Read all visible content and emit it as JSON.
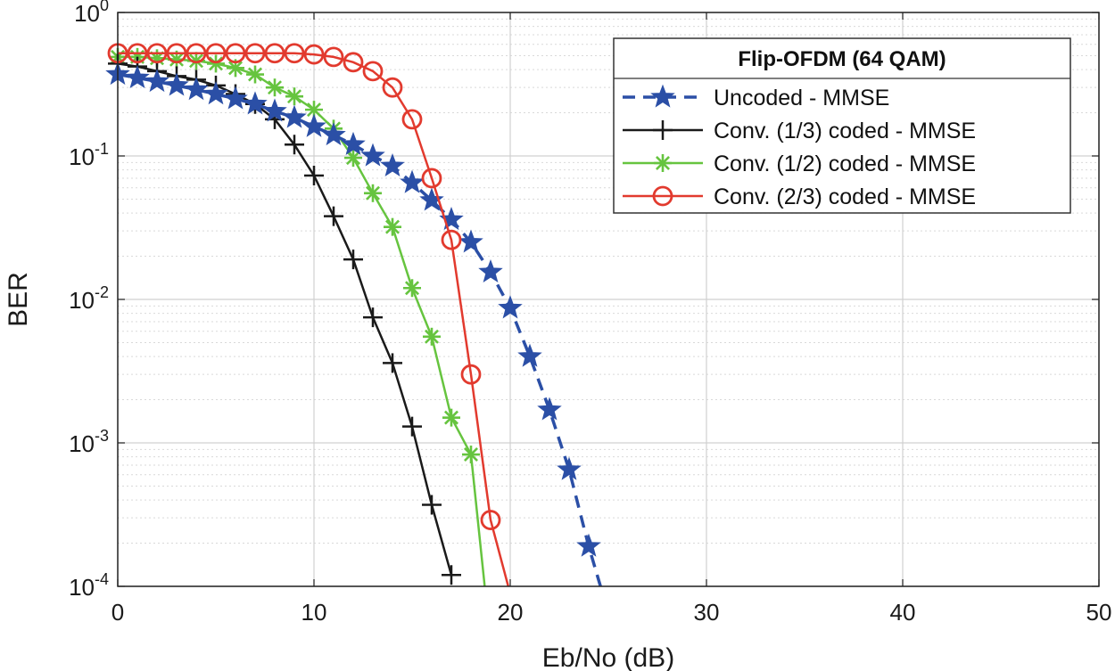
{
  "chart_data": {
    "type": "line",
    "title": "",
    "xlabel": "Eb/No (dB)",
    "ylabel": "BER",
    "x_scale": "linear",
    "y_scale": "log",
    "xlim": [
      0,
      50
    ],
    "ylim": [
      0.0001,
      1
    ],
    "x_ticks": [
      "0",
      "10",
      "20",
      "30",
      "40",
      "50"
    ],
    "y_ticks": [
      {
        "base": "10",
        "exp": "0"
      },
      {
        "base": "10",
        "exp": "-1"
      },
      {
        "base": "10",
        "exp": "-2"
      },
      {
        "base": "10",
        "exp": "-3"
      },
      {
        "base": "10",
        "exp": "-4"
      }
    ],
    "grid": true,
    "legend_title": "Flip-OFDM (64 QAM)",
    "legend_position": "top-right",
    "series": [
      {
        "name": "Uncoded - MMSE",
        "color": "#2b4fa6",
        "line_style": "dashed",
        "marker": "star",
        "x": [
          0,
          1,
          2,
          3,
          4,
          5,
          6,
          7,
          8,
          9,
          10,
          11,
          12,
          13,
          14,
          15,
          16,
          17,
          18,
          19,
          20,
          21,
          22,
          23,
          24,
          24.6
        ],
        "y": [
          0.37,
          0.35,
          0.33,
          0.31,
          0.29,
          0.27,
          0.25,
          0.23,
          0.205,
          0.185,
          0.16,
          0.14,
          0.12,
          0.1,
          0.085,
          0.065,
          0.049,
          0.036,
          0.025,
          0.0155,
          0.0087,
          0.004,
          0.0017,
          0.00065,
          0.00019,
          0.0001
        ]
      },
      {
        "name": "Conv. (1/3) coded - MMSE",
        "color": "#1a1a1a",
        "line_style": "solid",
        "marker": "plus",
        "x": [
          0,
          1,
          2,
          3,
          4,
          5,
          6,
          7,
          8,
          9,
          10,
          11,
          12,
          13,
          14,
          15,
          16,
          17
        ],
        "y": [
          0.44,
          0.42,
          0.39,
          0.36,
          0.34,
          0.31,
          0.27,
          0.23,
          0.18,
          0.12,
          0.073,
          0.038,
          0.019,
          0.0075,
          0.0036,
          0.0013,
          0.00037,
          0.00012
        ]
      },
      {
        "name": "Conv. (1/2) coded - MMSE",
        "color": "#66c43f",
        "line_style": "solid",
        "marker": "asterisk",
        "x": [
          0,
          1,
          2,
          3,
          4,
          5,
          6,
          7,
          8,
          9,
          10,
          11,
          12,
          13,
          14,
          15,
          16,
          17,
          18,
          18.7
        ],
        "y": [
          0.49,
          0.49,
          0.48,
          0.47,
          0.46,
          0.44,
          0.41,
          0.37,
          0.3,
          0.26,
          0.21,
          0.155,
          0.097,
          0.055,
          0.032,
          0.012,
          0.0055,
          0.0015,
          0.00083,
          0.0001
        ]
      },
      {
        "name": "Conv. (2/3) coded - MMSE",
        "color": "#e23a2e",
        "line_style": "solid",
        "marker": "circle",
        "x": [
          0,
          1,
          2,
          3,
          4,
          5,
          6,
          7,
          8,
          9,
          10,
          11,
          12,
          13,
          14,
          15,
          16,
          17,
          18,
          19,
          19.9
        ],
        "y": [
          0.52,
          0.52,
          0.52,
          0.52,
          0.52,
          0.52,
          0.52,
          0.52,
          0.52,
          0.52,
          0.51,
          0.49,
          0.45,
          0.39,
          0.3,
          0.18,
          0.07,
          0.026,
          0.003,
          0.00029,
          0.0001
        ]
      }
    ]
  }
}
